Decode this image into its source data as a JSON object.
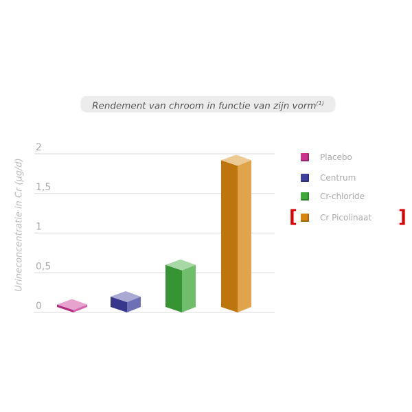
{
  "chart_data": {
    "type": "bar",
    "title": "Rendement van chroom in functie van zijn vorm",
    "title_superscript": "(1)",
    "ylabel": "Urineconcentratie in Cr (µg/d)",
    "xlabel": "",
    "categories": [
      "Placebo",
      "Centrum",
      "Cr-chloride",
      "Cr Picolinaat"
    ],
    "values": [
      0.03,
      0.13,
      0.53,
      1.85
    ],
    "ylim": [
      0,
      2
    ],
    "yticks": [
      "0",
      "0,5",
      "1",
      "1,5",
      "2"
    ],
    "grid": true,
    "legend": "right",
    "highlighted": "Cr Picolinaat",
    "colors": [
      "#c8338f",
      "#3f3f9e",
      "#3ea83a",
      "#d6860f"
    ]
  }
}
